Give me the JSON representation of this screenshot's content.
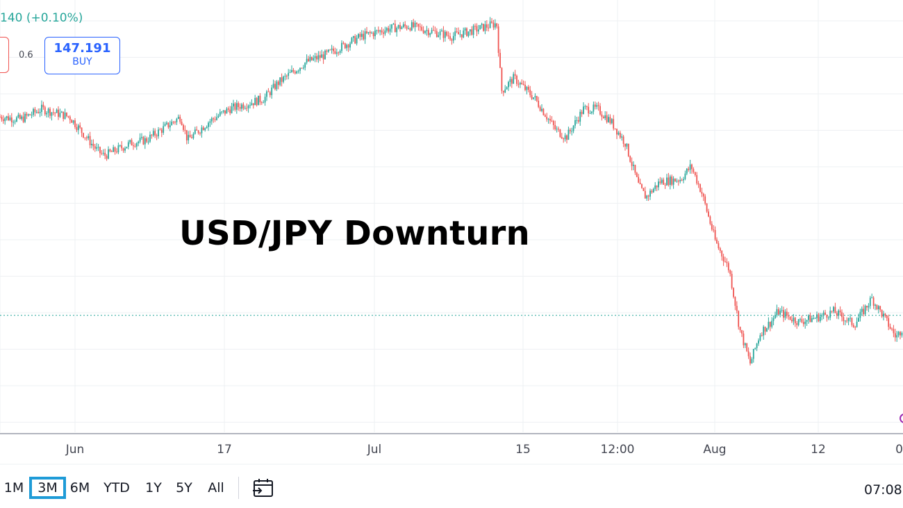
{
  "header": {
    "change_text": "140 (+0.10%)",
    "spread": "0.6",
    "buy_price": "147.191",
    "buy_label": "BUY"
  },
  "range_bar": {
    "buttons": [
      {
        "label": "1M",
        "active": false
      },
      {
        "label": "3M",
        "active": true
      },
      {
        "label": "6M",
        "active": false
      },
      {
        "label": "YTD",
        "active": false
      },
      {
        "label": "1Y",
        "active": false
      },
      {
        "label": "5Y",
        "active": false
      },
      {
        "label": "All",
        "active": false
      }
    ],
    "clock": "07:08",
    "calendar_icon": "calendar-goto-icon"
  },
  "colors": {
    "up": "#26a69a",
    "down": "#ef5350",
    "grid": "#eef0f3",
    "active_range": "#1e9bd7",
    "buy": "#2962ff"
  },
  "chart_data": {
    "type": "line",
    "title": "USD/JPY Downturn",
    "x_tick_labels": [
      "Jun",
      "17",
      "Jul",
      "15",
      "12:00",
      "Aug",
      "12",
      "0"
    ],
    "x": [
      0,
      30,
      60,
      100,
      140,
      150,
      190,
      210,
      260,
      270,
      300,
      330,
      380,
      400,
      440,
      470,
      520,
      560,
      590,
      620,
      650,
      690,
      715,
      722,
      740,
      770,
      800,
      815,
      840,
      860,
      880,
      900,
      920,
      930,
      950,
      980,
      995,
      1010,
      1030,
      1050,
      1065,
      1080,
      1095,
      1110,
      1120,
      1150,
      1180,
      1200,
      1230,
      1255,
      1270,
      1290,
      1300
    ],
    "y": [
      158.5,
      158.4,
      158.8,
      158.5,
      157.2,
      157.0,
      157.5,
      157.6,
      158.5,
      157.6,
      158.3,
      158.8,
      159.2,
      159.8,
      160.6,
      160.9,
      161.6,
      161.9,
      162.0,
      161.8,
      161.6,
      161.9,
      162.1,
      159.5,
      160.0,
      159.2,
      158.0,
      157.7,
      158.8,
      158.8,
      158.3,
      157.5,
      155.8,
      155.4,
      156.0,
      156.1,
      156.6,
      155.6,
      153.7,
      152.6,
      150.3,
      149.0,
      150.2,
      150.6,
      151.0,
      150.6,
      150.8,
      151.0,
      150.5,
      151.5,
      150.9,
      150.0,
      150.4
    ],
    "current_price_line": 150.85,
    "grid": true
  }
}
